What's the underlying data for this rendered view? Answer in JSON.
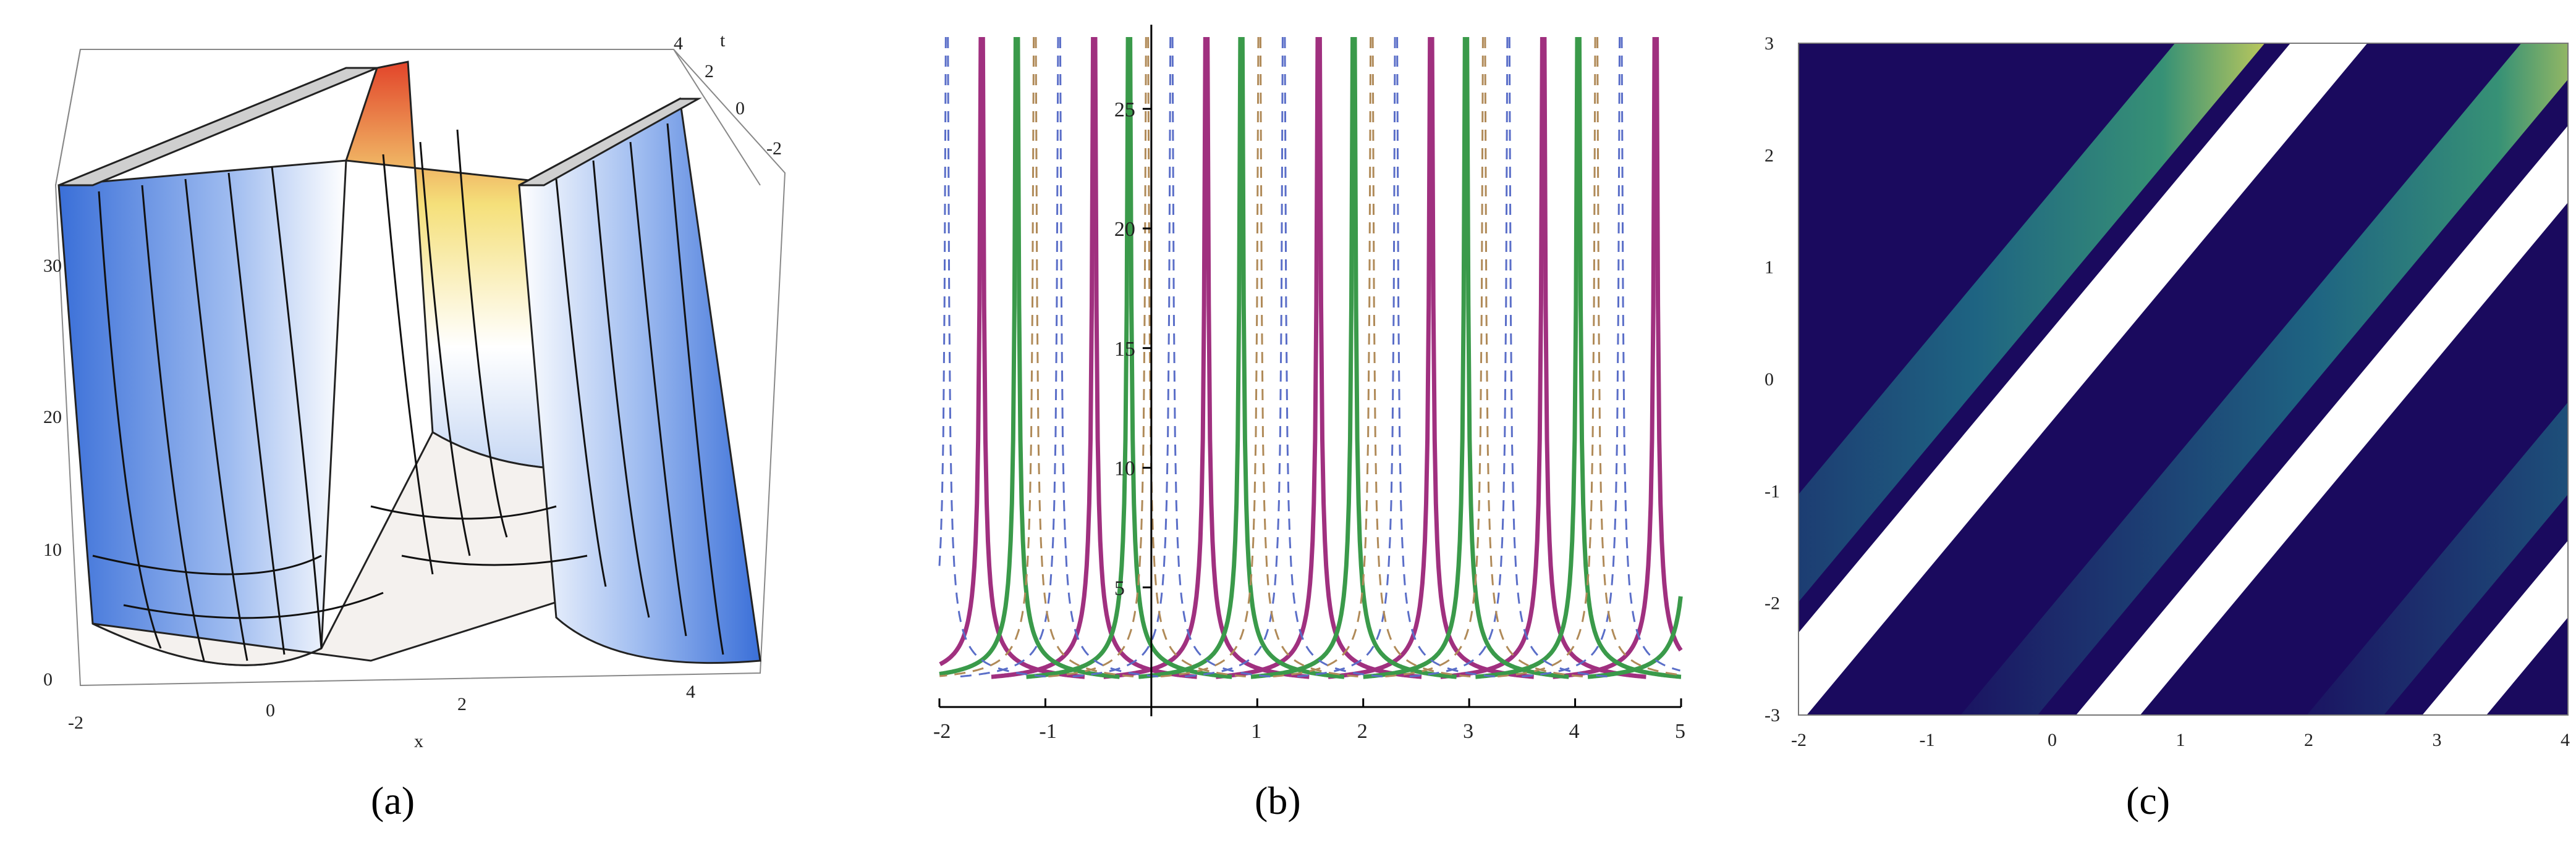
{
  "captions": [
    "(a)",
    "(b)",
    "(c)"
  ],
  "chart_data": [
    {
      "type": "surface3d",
      "panel": "a",
      "xlabel": "x",
      "tlabel": "t",
      "x_ticks": [
        "-2",
        "0",
        "2",
        "4"
      ],
      "t_ticks": [
        "4",
        "2",
        "0",
        "-2"
      ],
      "z_ticks": [
        "0",
        "10",
        "20",
        "30"
      ],
      "colors": {
        "low": "#3a6fd8",
        "mid": "#ffffff",
        "high": "#f5e07a",
        "peak": "#e2442a"
      }
    },
    {
      "type": "line",
      "panel": "b",
      "xlim": [
        -2,
        5
      ],
      "ylim": [
        0,
        28
      ],
      "x_ticks": [
        "-2",
        "-1",
        "1",
        "2",
        "3",
        "4",
        "5"
      ],
      "y_ticks": [
        "5",
        "10",
        "15",
        "20",
        "25"
      ],
      "series": [
        {
          "style": "solid",
          "color": "#a0307f",
          "poles": [
            -1.6,
            -0.54,
            0.52,
            1.58,
            2.64,
            3.7,
            4.76
          ]
        },
        {
          "style": "solid",
          "color": "#3a9a4a",
          "poles": [
            -1.27,
            -0.21,
            0.85,
            1.91,
            2.97,
            4.03,
            5.09
          ]
        },
        {
          "style": "dashed",
          "color": "#5a6ec8",
          "poles": [
            -1.93,
            -0.87,
            0.19,
            1.25,
            2.31,
            3.37,
            4.43
          ]
        },
        {
          "style": "dashed",
          "color": "#b08a58",
          "poles": [
            -1.1,
            -0.04,
            1.02,
            2.08,
            3.14,
            4.2
          ]
        }
      ]
    },
    {
      "type": "heatmap",
      "panel": "c",
      "xlim": [
        -2,
        4
      ],
      "ylim": [
        -3,
        3
      ],
      "x_ticks": [
        "-2",
        "-1",
        "0",
        "1",
        "2",
        "3",
        "4"
      ],
      "y_ticks": [
        "3",
        "2",
        "1",
        "0",
        "-1",
        "-2",
        "-3"
      ],
      "colors": {
        "dark": "#1a0a5e",
        "teal": "#1f6e86",
        "green": "#3aa078",
        "yellow": "#d9e25a",
        "white": "#ffffff"
      }
    }
  ]
}
